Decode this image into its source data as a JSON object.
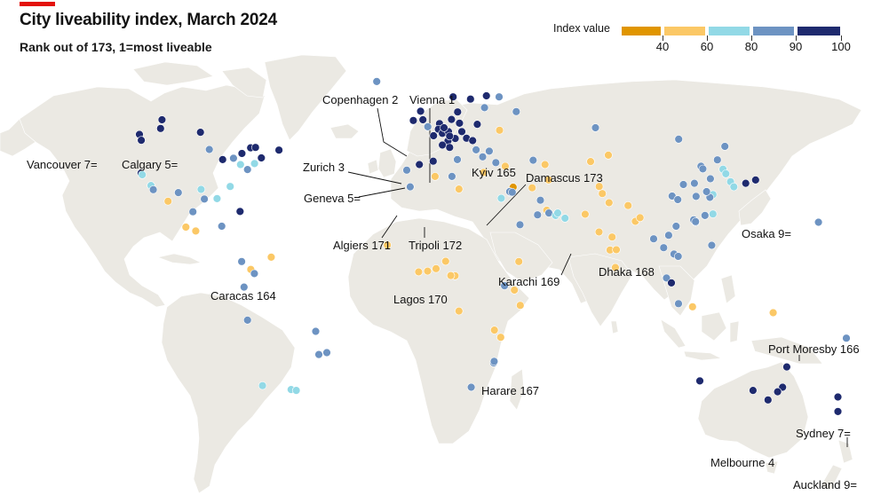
{
  "title": "City liveability index, March 2024",
  "subtitle": "Rank out of 173, 1=most liveable",
  "legend": {
    "title": "Index value",
    "ticks": [
      "40",
      "60",
      "80",
      "90",
      "100"
    ],
    "colors": [
      "#e09500",
      "#fbc866",
      "#92d9e6",
      "#6d93c2",
      "#1e2a6e"
    ]
  },
  "colors": {
    "land": "#ebe9e3",
    "land_border": "#ffffff",
    "ocean": "#ffffff",
    "leader": "#121212"
  },
  "labels": [
    {
      "id": "vancouver",
      "text": "Vancouver 7="
    },
    {
      "id": "calgary",
      "text": "Calgary 5="
    },
    {
      "id": "copenhagen",
      "text": "Copenhagen 2"
    },
    {
      "id": "vienna",
      "text": "Vienna 1"
    },
    {
      "id": "zurich",
      "text": "Zurich 3"
    },
    {
      "id": "geneva",
      "text": "Geneva 5="
    },
    {
      "id": "kyiv",
      "text": "Kyiv 165"
    },
    {
      "id": "damascus",
      "text": "Damascus 173"
    },
    {
      "id": "algiers",
      "text": "Algiers 171"
    },
    {
      "id": "tripoli",
      "text": "Tripoli 172"
    },
    {
      "id": "caracas",
      "text": "Caracas 164"
    },
    {
      "id": "lagos",
      "text": "Lagos 170"
    },
    {
      "id": "karachi",
      "text": "Karachi 169"
    },
    {
      "id": "dhaka",
      "text": "Dhaka 168"
    },
    {
      "id": "osaka",
      "text": "Osaka 9="
    },
    {
      "id": "port-moresby",
      "text": "Port Moresby 166"
    },
    {
      "id": "harare",
      "text": "Harare 167"
    },
    {
      "id": "sydney",
      "text": "Sydney 7="
    },
    {
      "id": "melbourne",
      "text": "Melbourne 4"
    },
    {
      "id": "auckland",
      "text": "Auckland 9="
    }
  ],
  "cities": [
    {
      "lon": -123.1,
      "lat": 49.3,
      "tier": 4
    },
    {
      "lon": -114.1,
      "lat": 51.0,
      "tier": 4
    },
    {
      "lon": -113.5,
      "lat": 53.5,
      "tier": 4
    },
    {
      "lon": -122.4,
      "lat": 37.8,
      "tier": 4
    },
    {
      "lon": -122.3,
      "lat": 47.6,
      "tier": 4
    },
    {
      "lon": -121.9,
      "lat": 37.3,
      "tier": 2
    },
    {
      "lon": -118.2,
      "lat": 34.0,
      "tier": 2
    },
    {
      "lon": -117.2,
      "lat": 32.7,
      "tier": 3
    },
    {
      "lon": -79.4,
      "lat": 43.7,
      "tier": 4
    },
    {
      "lon": -75.7,
      "lat": 45.4,
      "tier": 4
    },
    {
      "lon": -73.6,
      "lat": 45.5,
      "tier": 4
    },
    {
      "lon": -97.1,
      "lat": 49.9,
      "tier": 4
    },
    {
      "lon": -71.1,
      "lat": 42.4,
      "tier": 4
    },
    {
      "lon": -63.6,
      "lat": 44.7,
      "tier": 4
    },
    {
      "lon": -87.6,
      "lat": 41.9,
      "tier": 4
    },
    {
      "lon": -83.0,
      "lat": 42.3,
      "tier": 3
    },
    {
      "lon": -80.0,
      "lat": 40.4,
      "tier": 2
    },
    {
      "lon": -74.0,
      "lat": 40.7,
      "tier": 2
    },
    {
      "lon": -77.0,
      "lat": 38.9,
      "tier": 3
    },
    {
      "lon": -84.4,
      "lat": 33.7,
      "tier": 2
    },
    {
      "lon": -93.3,
      "lat": 44.9,
      "tier": 3
    },
    {
      "lon": -96.8,
      "lat": 32.8,
      "tier": 2
    },
    {
      "lon": -95.4,
      "lat": 29.8,
      "tier": 3
    },
    {
      "lon": -80.2,
      "lat": 25.8,
      "tier": 4
    },
    {
      "lon": -90.0,
      "lat": 29.9,
      "tier": 2
    },
    {
      "lon": -106.5,
      "lat": 31.8,
      "tier": 3
    },
    {
      "lon": -110.9,
      "lat": 29.1,
      "tier": 1
    },
    {
      "lon": -99.1,
      "lat": 19.4,
      "tier": 1
    },
    {
      "lon": -100.3,
      "lat": 25.7,
      "tier": 3
    },
    {
      "lon": -103.3,
      "lat": 20.7,
      "tier": 1
    },
    {
      "lon": -88.0,
      "lat": 21.0,
      "tier": 3
    },
    {
      "lon": -66.9,
      "lat": 10.5,
      "tier": 1
    },
    {
      "lon": -75.6,
      "lat": 6.2,
      "tier": 1
    },
    {
      "lon": -79.5,
      "lat": 9.0,
      "tier": 3
    },
    {
      "lon": -74.1,
      "lat": 4.7,
      "tier": 3
    },
    {
      "lon": -78.5,
      "lat": -0.2,
      "tier": 3
    },
    {
      "lon": -77.0,
      "lat": -12.0,
      "tier": 3
    },
    {
      "lon": -47.9,
      "lat": -15.8,
      "tier": 3
    },
    {
      "lon": -43.2,
      "lat": -22.9,
      "tier": 3
    },
    {
      "lon": -46.6,
      "lat": -23.5,
      "tier": 3
    },
    {
      "lon": -58.4,
      "lat": -34.6,
      "tier": 2
    },
    {
      "lon": -56.2,
      "lat": -34.9,
      "tier": 2
    },
    {
      "lon": -70.6,
      "lat": -33.4,
      "tier": 2
    },
    {
      "lon": -21.9,
      "lat": 64.1,
      "tier": 3
    },
    {
      "lon": -6.3,
      "lat": 53.3,
      "tier": 4
    },
    {
      "lon": -3.2,
      "lat": 55.9,
      "tier": 4
    },
    {
      "lon": -2.2,
      "lat": 53.5,
      "tier": 4
    },
    {
      "lon": -0.1,
      "lat": 51.5,
      "tier": 3
    },
    {
      "lon": 2.35,
      "lat": 48.9,
      "tier": 4
    },
    {
      "lon": 4.9,
      "lat": 52.4,
      "tier": 4
    },
    {
      "lon": 4.4,
      "lat": 50.8,
      "tier": 4
    },
    {
      "lon": 6.1,
      "lat": 49.6,
      "tier": 4
    },
    {
      "lon": 8.5,
      "lat": 47.4,
      "tier": 4
    },
    {
      "lon": 6.1,
      "lat": 46.2,
      "tier": 4
    },
    {
      "lon": 8.7,
      "lat": 50.1,
      "tier": 4
    },
    {
      "lon": 6.8,
      "lat": 51.2,
      "tier": 4
    },
    {
      "lon": 10.0,
      "lat": 53.6,
      "tier": 4
    },
    {
      "lon": 11.6,
      "lat": 48.1,
      "tier": 4
    },
    {
      "lon": 9.2,
      "lat": 48.8,
      "tier": 4
    },
    {
      "lon": 13.4,
      "lat": 52.5,
      "tier": 4
    },
    {
      "lon": 12.6,
      "lat": 55.7,
      "tier": 4
    },
    {
      "lon": 10.7,
      "lat": 59.9,
      "tier": 4
    },
    {
      "lon": 18.1,
      "lat": 59.3,
      "tier": 4
    },
    {
      "lon": 24.9,
      "lat": 60.2,
      "tier": 4
    },
    {
      "lon": 16.4,
      "lat": 48.2,
      "tier": 4
    },
    {
      "lon": 14.4,
      "lat": 50.1,
      "tier": 4
    },
    {
      "lon": 19.0,
      "lat": 47.5,
      "tier": 4
    },
    {
      "lon": 21.0,
      "lat": 52.2,
      "tier": 4
    },
    {
      "lon": 24.1,
      "lat": 56.9,
      "tier": 3
    },
    {
      "lon": 30.3,
      "lat": 59.9,
      "tier": 3
    },
    {
      "lon": 37.6,
      "lat": 55.8,
      "tier": 3
    },
    {
      "lon": 30.5,
      "lat": 50.5,
      "tier": 1
    },
    {
      "lon": 26.1,
      "lat": 44.4,
      "tier": 3
    },
    {
      "lon": 23.3,
      "lat": 42.7,
      "tier": 3
    },
    {
      "lon": 20.5,
      "lat": 44.8,
      "tier": 3
    },
    {
      "lon": 28.9,
      "lat": 41.0,
      "tier": 3
    },
    {
      "lon": 23.7,
      "lat": 38.0,
      "tier": 1
    },
    {
      "lon": 12.5,
      "lat": 41.9,
      "tier": 3
    },
    {
      "lon": 9.2,
      "lat": 45.5,
      "tier": 4
    },
    {
      "lon": -3.7,
      "lat": 40.4,
      "tier": 4
    },
    {
      "lon": 2.2,
      "lat": 41.4,
      "tier": 4
    },
    {
      "lon": -9.1,
      "lat": 38.7,
      "tier": 3
    },
    {
      "lon": 3.0,
      "lat": 36.8,
      "tier": 1
    },
    {
      "lon": 10.2,
      "lat": 36.8,
      "tier": 3
    },
    {
      "lon": 13.2,
      "lat": 32.9,
      "tier": 1
    },
    {
      "lon": -7.6,
      "lat": 33.6,
      "tier": 3
    },
    {
      "lon": 31.2,
      "lat": 30.0,
      "tier": 2
    },
    {
      "lon": 32.9,
      "lat": 39.9,
      "tier": 1
    },
    {
      "lon": 44.8,
      "lat": 41.7,
      "tier": 3
    },
    {
      "lon": 49.9,
      "lat": 40.4,
      "tier": 1
    },
    {
      "lon": 36.3,
      "lat": 33.5,
      "tier": 0
    },
    {
      "lon": 35.2,
      "lat": 31.8,
      "tier": 3
    },
    {
      "lon": 34.8,
      "lat": 32.1,
      "tier": 3
    },
    {
      "lon": 35.9,
      "lat": 31.9,
      "tier": 3
    },
    {
      "lon": 51.4,
      "lat": 35.7,
      "tier": 1
    },
    {
      "lon": 44.4,
      "lat": 33.3,
      "tier": 1
    },
    {
      "lon": 47.9,
      "lat": 29.4,
      "tier": 3
    },
    {
      "lon": 50.6,
      "lat": 26.2,
      "tier": 1
    },
    {
      "lon": 51.5,
      "lat": 25.3,
      "tier": 3
    },
    {
      "lon": 54.4,
      "lat": 24.5,
      "tier": 2
    },
    {
      "lon": 55.3,
      "lat": 25.3,
      "tier": 2
    },
    {
      "lon": 58.4,
      "lat": 23.6,
      "tier": 2
    },
    {
      "lon": 46.7,
      "lat": 24.7,
      "tier": 3
    },
    {
      "lon": 39.2,
      "lat": 21.5,
      "tier": 3
    },
    {
      "lon": 69.3,
      "lat": 41.3,
      "tier": 1
    },
    {
      "lon": 71.4,
      "lat": 51.2,
      "tier": 3
    },
    {
      "lon": 76.9,
      "lat": 43.2,
      "tier": 1
    },
    {
      "lon": 67.0,
      "lat": 24.9,
      "tier": 1
    },
    {
      "lon": 74.3,
      "lat": 31.5,
      "tier": 1
    },
    {
      "lon": 73.0,
      "lat": 33.7,
      "tier": 1
    },
    {
      "lon": 77.2,
      "lat": 28.6,
      "tier": 1
    },
    {
      "lon": 72.9,
      "lat": 19.1,
      "tier": 1
    },
    {
      "lon": 77.6,
      "lat": 13.0,
      "tier": 1
    },
    {
      "lon": 80.3,
      "lat": 13.1,
      "tier": 1
    },
    {
      "lon": 78.5,
      "lat": 17.4,
      "tier": 1
    },
    {
      "lon": 88.4,
      "lat": 22.6,
      "tier": 1
    },
    {
      "lon": 85.3,
      "lat": 27.7,
      "tier": 1
    },
    {
      "lon": 90.4,
      "lat": 23.8,
      "tier": 1
    },
    {
      "lon": 79.9,
      "lat": 6.9,
      "tier": 1
    },
    {
      "lon": 96.2,
      "lat": 16.8,
      "tier": 3
    },
    {
      "lon": 100.5,
      "lat": 13.8,
      "tier": 3
    },
    {
      "lon": 102.6,
      "lat": 18.0,
      "tier": 3
    },
    {
      "lon": 104.9,
      "lat": 11.6,
      "tier": 3
    },
    {
      "lon": 106.7,
      "lat": 10.8,
      "tier": 3
    },
    {
      "lon": 105.8,
      "lat": 21.0,
      "tier": 3
    },
    {
      "lon": 101.7,
      "lat": 3.1,
      "tier": 3
    },
    {
      "lon": 103.8,
      "lat": 1.35,
      "tier": 4
    },
    {
      "lon": 106.8,
      "lat": -6.2,
      "tier": 3
    },
    {
      "lon": 112.8,
      "lat": -7.3,
      "tier": 1
    },
    {
      "lon": 121.0,
      "lat": 14.6,
      "tier": 3
    },
    {
      "lon": 114.2,
      "lat": 22.3,
      "tier": 3
    },
    {
      "lon": 113.3,
      "lat": 23.1,
      "tier": 3
    },
    {
      "lon": 114.1,
      "lat": 22.5,
      "tier": 3
    },
    {
      "lon": 121.5,
      "lat": 25.0,
      "tier": 2
    },
    {
      "lon": 121.5,
      "lat": 31.2,
      "tier": 2
    },
    {
      "lon": 120.2,
      "lat": 30.3,
      "tier": 3
    },
    {
      "lon": 118.8,
      "lat": 32.1,
      "tier": 3
    },
    {
      "lon": 118.1,
      "lat": 24.5,
      "tier": 3
    },
    {
      "lon": 116.4,
      "lat": 39.9,
      "tier": 3
    },
    {
      "lon": 117.2,
      "lat": 39.1,
      "tier": 3
    },
    {
      "lon": 114.3,
      "lat": 30.6,
      "tier": 3
    },
    {
      "lon": 104.1,
      "lat": 30.7,
      "tier": 3
    },
    {
      "lon": 106.5,
      "lat": 29.6,
      "tier": 3
    },
    {
      "lon": 108.9,
      "lat": 34.3,
      "tier": 3
    },
    {
      "lon": 113.6,
      "lat": 34.7,
      "tier": 3
    },
    {
      "lon": 120.4,
      "lat": 36.1,
      "tier": 3
    },
    {
      "lon": 123.4,
      "lat": 41.8,
      "tier": 3
    },
    {
      "lon": 126.6,
      "lat": 45.8,
      "tier": 3
    },
    {
      "lon": 125.8,
      "lat": 39.0,
      "tier": 2
    },
    {
      "lon": 127.0,
      "lat": 37.6,
      "tier": 2
    },
    {
      "lon": 129.0,
      "lat": 35.2,
      "tier": 2
    },
    {
      "lon": 106.9,
      "lat": 47.9,
      "tier": 3
    },
    {
      "lon": 139.7,
      "lat": 35.7,
      "tier": 4
    },
    {
      "lon": 135.5,
      "lat": 34.7,
      "tier": 4
    },
    {
      "lon": 130.4,
      "lat": 33.6,
      "tier": 2
    },
    {
      "lon": 147.2,
      "lat": -9.4,
      "tier": 1
    },
    {
      "lon": 166.5,
      "lat": 22.3,
      "tier": 3
    },
    {
      "lon": 178.4,
      "lat": -18.1,
      "tier": 3
    },
    {
      "lon": 151.2,
      "lat": -33.9,
      "tier": 4
    },
    {
      "lon": 145.0,
      "lat": -37.8,
      "tier": 4
    },
    {
      "lon": 138.6,
      "lat": -34.9,
      "tier": 4
    },
    {
      "lon": 153.0,
      "lat": -27.5,
      "tier": 4
    },
    {
      "lon": 115.9,
      "lat": -31.95,
      "tier": 4
    },
    {
      "lon": 149.1,
      "lat": -35.3,
      "tier": 4
    },
    {
      "lon": 174.8,
      "lat": -36.9,
      "tier": 4
    },
    {
      "lon": 174.8,
      "lat": -41.3,
      "tier": 4
    },
    {
      "lon": 3.4,
      "lat": 6.5,
      "tier": 1
    },
    {
      "lon": -4.0,
      "lat": 5.3,
      "tier": 1
    },
    {
      "lon": -17.4,
      "lat": 14.7,
      "tier": 1
    },
    {
      "lon": 7.5,
      "lat": 9.1,
      "tier": 1
    },
    {
      "lon": -0.2,
      "lat": 5.6,
      "tier": 1
    },
    {
      "lon": 11.5,
      "lat": 3.9,
      "tier": 1
    },
    {
      "lon": 9.7,
      "lat": 4.0,
      "tier": 1
    },
    {
      "lon": 13.2,
      "lat": -8.8,
      "tier": 1
    },
    {
      "lon": 36.8,
      "lat": -1.3,
      "tier": 1
    },
    {
      "lon": 38.7,
      "lat": 9.0,
      "tier": 1
    },
    {
      "lon": 32.6,
      "lat": 0.3,
      "tier": 3
    },
    {
      "lon": 39.3,
      "lat": -6.8,
      "tier": 1
    },
    {
      "lon": 28.3,
      "lat": -15.4,
      "tier": 1
    },
    {
      "lon": 31.0,
      "lat": -17.8,
      "tier": 1
    },
    {
      "lon": 28.0,
      "lat": -26.2,
      "tier": 3
    },
    {
      "lon": 28.2,
      "lat": -25.7,
      "tier": 3
    },
    {
      "lon": 18.4,
      "lat": -33.9,
      "tier": 3
    }
  ]
}
